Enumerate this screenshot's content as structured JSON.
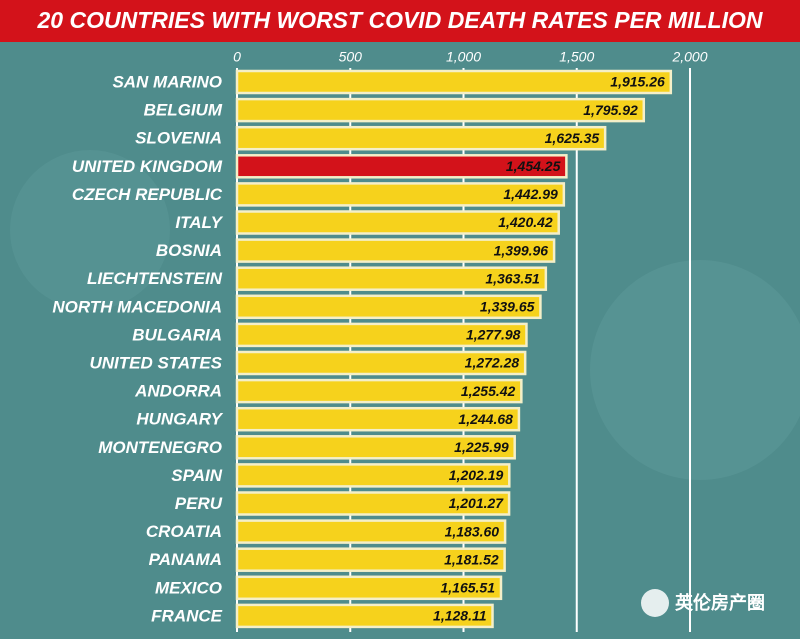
{
  "chart_data": {
    "type": "hbar",
    "title": "20 COUNTRIES WITH WORST COVID DEATH RATES PER MILLION",
    "categories": [
      "SAN MARINO",
      "BELGIUM",
      "SLOVENIA",
      "UNITED KINGDOM",
      "CZECH REPUBLIC",
      "ITALY",
      "BOSNIA",
      "LIECHTENSTEIN",
      "NORTH MACEDONIA",
      "BULGARIA",
      "UNITED STATES",
      "ANDORRA",
      "HUNGARY",
      "MONTENEGRO",
      "SPAIN",
      "PERU",
      "CROATIA",
      "PANAMA",
      "MEXICO",
      "FRANCE"
    ],
    "values": [
      1915.26,
      1795.92,
      1625.35,
      1454.25,
      1442.99,
      1420.42,
      1399.96,
      1363.51,
      1339.65,
      1277.98,
      1272.28,
      1255.42,
      1244.68,
      1225.99,
      1202.19,
      1201.27,
      1183.6,
      1181.52,
      1165.51,
      1128.11
    ],
    "value_labels": [
      "1,915.26",
      "1,795.92",
      "1,625.35",
      "1,454.25",
      "1,442.99",
      "1,420.42",
      "1,399.96",
      "1,363.51",
      "1,339.65",
      "1,277.98",
      "1,272.28",
      "1,255.42",
      "1,244.68",
      "1,225.99",
      "1,202.19",
      "1,201.27",
      "1,183.60",
      "1,181.52",
      "1,165.51",
      "1,128.11"
    ],
    "colors": [
      "#f6d21c",
      "#f6d21c",
      "#f6d21c",
      "#d3121a",
      "#f6d21c",
      "#f6d21c",
      "#f6d21c",
      "#f6d21c",
      "#f6d21c",
      "#f6d21c",
      "#f6d21c",
      "#f6d21c",
      "#f6d21c",
      "#f6d21c",
      "#f6d21c",
      "#f6d21c",
      "#f6d21c",
      "#f6d21c",
      "#f6d21c",
      "#f6d21c"
    ],
    "xlim": [
      0,
      2000
    ],
    "xticks": [
      0,
      500,
      {
        "value": 1000,
        "label": "1,000"
      },
      {
        "value": 1500,
        "label": "1,500"
      },
      {
        "value": 2000,
        "label": "2,000"
      }
    ],
    "grid": true
  },
  "watermark": "英伦房产圈"
}
